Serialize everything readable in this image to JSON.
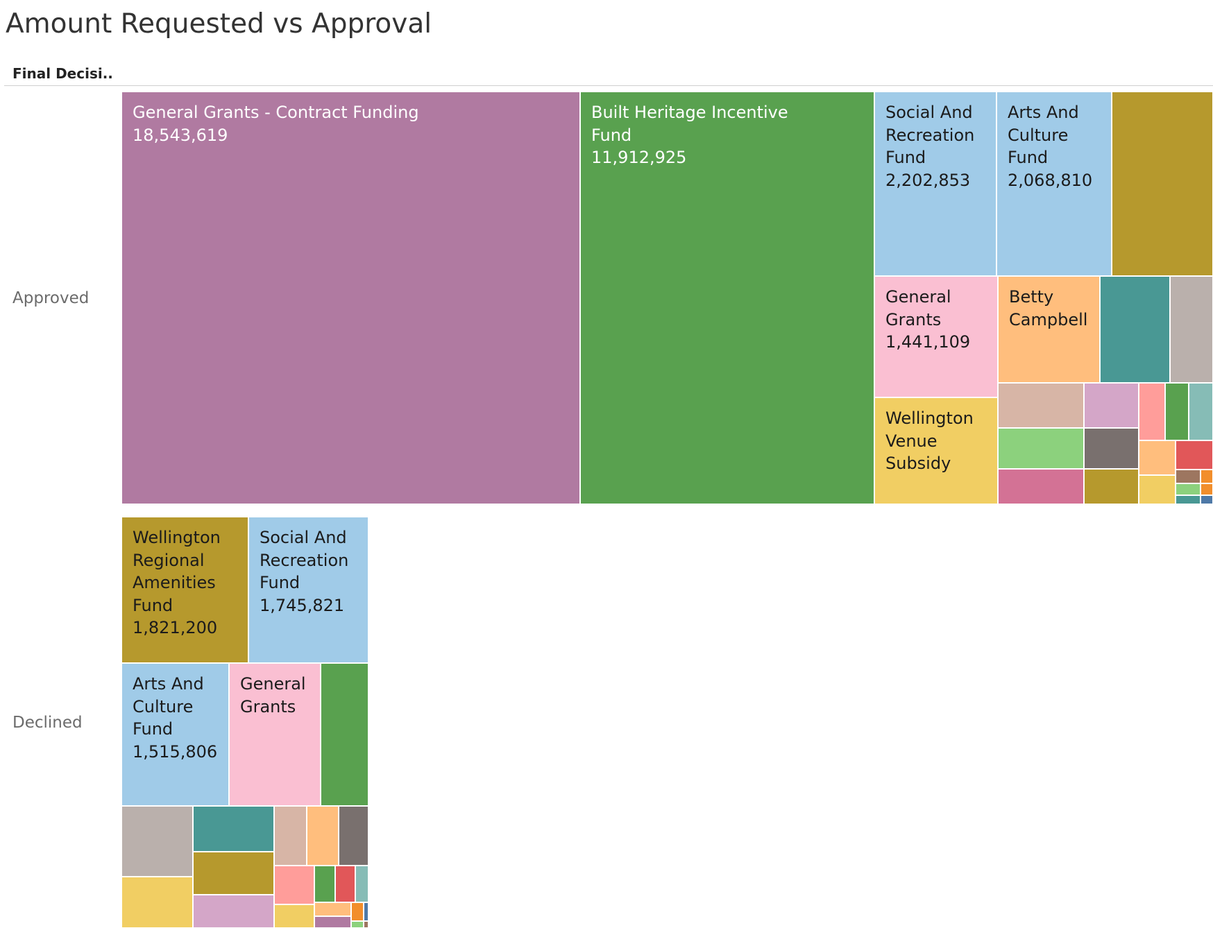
{
  "title": "Amount Requested vs Approval",
  "row_header": "Final Decisi..",
  "chart_data": {
    "type": "treemap",
    "title": "Amount Requested vs Approval",
    "row_field": "Final Decisi..",
    "groups": [
      {
        "name": "Approved",
        "items": [
          {
            "label": "General Grants - Contract Funding",
            "value": 18543619,
            "color": "#b07aa1",
            "light": true
          },
          {
            "label": "Built Heritage Incentive Fund",
            "value": 11912925,
            "color": "#59a14f",
            "light": true
          },
          {
            "label": "Social And Recreation Fund",
            "value": 2202853,
            "color": "#a0cbe8"
          },
          {
            "label": "Arts And Culture Fund",
            "value": 2068810,
            "color": "#a0cbe8"
          },
          {
            "label": "",
            "value": null,
            "color": "#b6992d"
          },
          {
            "label": "General Grants",
            "value": 1441109,
            "color": "#fabfd2"
          },
          {
            "label": "Betty Campbell",
            "value": null,
            "color": "#ffbe7d"
          },
          {
            "label": "",
            "value": null,
            "color": "#499894"
          },
          {
            "label": "",
            "value": null,
            "color": "#bab0ac"
          },
          {
            "label": "Wellington Venue Subsidy",
            "value": null,
            "color": "#f1ce63"
          },
          {
            "label": "",
            "value": null,
            "color": "#d7b5a6"
          },
          {
            "label": "",
            "value": null,
            "color": "#d4a6c8"
          },
          {
            "label": "",
            "value": null,
            "color": "#ff9d9a"
          },
          {
            "label": "",
            "value": null,
            "color": "#59a14f"
          },
          {
            "label": "",
            "value": null,
            "color": "#86bcb6"
          },
          {
            "label": "",
            "value": null,
            "color": "#8cd17d"
          },
          {
            "label": "",
            "value": null,
            "color": "#79706e"
          },
          {
            "label": "",
            "value": null,
            "color": "#ffbe7d"
          },
          {
            "label": "",
            "value": null,
            "color": "#e15759"
          },
          {
            "label": "",
            "value": null,
            "color": "#d37295"
          },
          {
            "label": "",
            "value": null,
            "color": "#b6992d"
          },
          {
            "label": "",
            "value": null,
            "color": "#f1ce63"
          },
          {
            "label": "",
            "value": null,
            "color": "#9d7660"
          },
          {
            "label": "",
            "value": null,
            "color": "#f28e2b"
          },
          {
            "label": "",
            "value": null,
            "color": "#8cd17d"
          },
          {
            "label": "",
            "value": null,
            "color": "#f28e2b"
          },
          {
            "label": "",
            "value": null,
            "color": "#499894"
          },
          {
            "label": "",
            "value": null,
            "color": "#4e79a7"
          }
        ]
      },
      {
        "name": "Declined",
        "items": [
          {
            "label": "Wellington Regional Amenities Fund",
            "value": 1821200,
            "color": "#b6992d"
          },
          {
            "label": "Social And Recreation Fund",
            "value": 1745821,
            "color": "#a0cbe8"
          },
          {
            "label": "Arts And Culture Fund",
            "value": 1515806,
            "color": "#a0cbe8"
          },
          {
            "label": "General Grants",
            "value": null,
            "color": "#fabfd2"
          },
          {
            "label": "",
            "value": null,
            "color": "#59a14f"
          },
          {
            "label": "",
            "value": null,
            "color": "#bab0ac"
          },
          {
            "label": "",
            "value": null,
            "color": "#499894"
          },
          {
            "label": "",
            "value": null,
            "color": "#d7b5a6"
          },
          {
            "label": "",
            "value": null,
            "color": "#ffbe7d"
          },
          {
            "label": "",
            "value": null,
            "color": "#79706e"
          },
          {
            "label": "",
            "value": null,
            "color": "#b6992d"
          },
          {
            "label": "",
            "value": null,
            "color": "#ff9d9a"
          },
          {
            "label": "",
            "value": null,
            "color": "#59a14f"
          },
          {
            "label": "",
            "value": null,
            "color": "#e15759"
          },
          {
            "label": "",
            "value": null,
            "color": "#86bcb6"
          },
          {
            "label": "",
            "value": null,
            "color": "#f1ce63"
          },
          {
            "label": "",
            "value": null,
            "color": "#d4a6c8"
          },
          {
            "label": "",
            "value": null,
            "color": "#f1ce63"
          },
          {
            "label": "",
            "value": null,
            "color": "#ffbe7d"
          },
          {
            "label": "",
            "value": null,
            "color": "#f28e2b"
          },
          {
            "label": "",
            "value": null,
            "color": "#4e79a7"
          },
          {
            "label": "",
            "value": null,
            "color": "#b07aa1"
          },
          {
            "label": "",
            "value": null,
            "color": "#8cd17d"
          },
          {
            "label": "",
            "value": null,
            "color": "#9d7660"
          }
        ]
      }
    ]
  }
}
